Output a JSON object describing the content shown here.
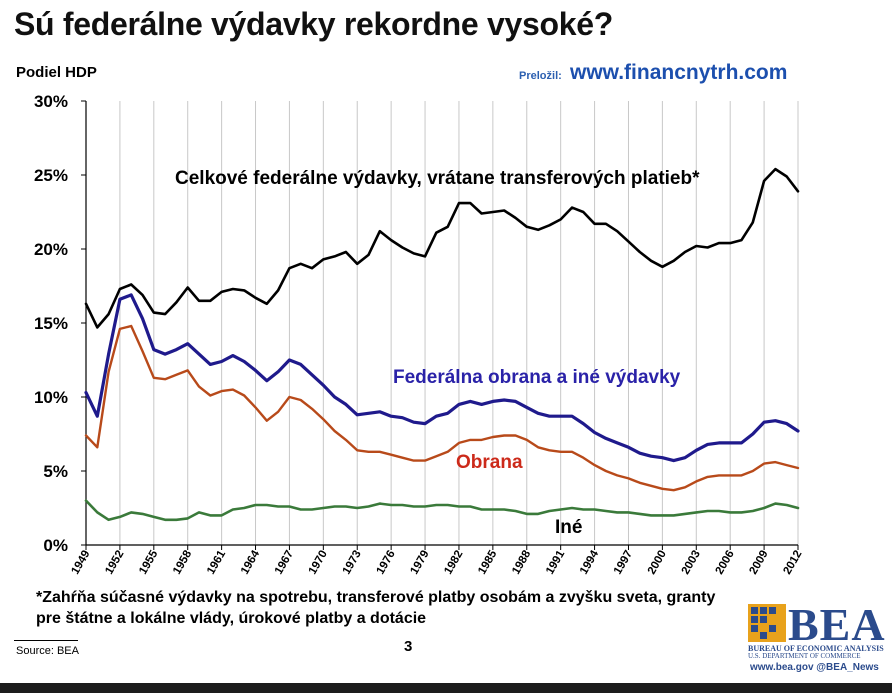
{
  "title": "Sú federálne výdavky rekordne vysoké?",
  "y_axis_unit": "Podiel HDP",
  "translated_label": "Preložil:",
  "translated_site": "www.financnytrh.com",
  "footnote": "*Zahŕňa súčasné výdavky na spotrebu, transferové platby osobám a zvyšku sveta, granty pre štátne a lokálne vlády, úrokové platby a dotácie",
  "source": "Source: BEA",
  "page_number": "3",
  "logo": {
    "name": "BEA",
    "line1": "BUREAU OF ECONOMIC ANALYSIS",
    "line2": "U.S. DEPARTMENT OF COMMERCE",
    "links": "www.bea.gov   @BEA_News"
  },
  "colors": {
    "total": "#000000",
    "defense_other": "#1f1a8c",
    "defense": "#b84a1a",
    "other": "#3a7a3a",
    "grid": "#c8c8c8",
    "annot_total": "#000000",
    "annot_defense_other": "#2a22a8",
    "annot_defense": "#cc2a1a",
    "annot_other": "#000000"
  },
  "chart_data": {
    "type": "line",
    "y_axis_unit": "Podiel HDP",
    "ylim": [
      0,
      30
    ],
    "y_ticks": [
      "0%",
      "5%",
      "10%",
      "15%",
      "20%",
      "25%",
      "30%"
    ],
    "y_tick_values": [
      0,
      5,
      10,
      15,
      20,
      25,
      30
    ],
    "x_tick_labels": [
      "1949",
      "1952",
      "1955",
      "1958",
      "1961",
      "1964",
      "1967",
      "1970",
      "1973",
      "1976",
      "1979",
      "1982",
      "1985",
      "1988",
      "1991",
      "1994",
      "1997",
      "2000",
      "2003",
      "2006",
      "2009",
      "2012"
    ],
    "grid": "vertical lines every 3 years",
    "x": [
      1949,
      1950,
      1951,
      1952,
      1953,
      1954,
      1955,
      1956,
      1957,
      1958,
      1959,
      1960,
      1961,
      1962,
      1963,
      1964,
      1965,
      1966,
      1967,
      1968,
      1969,
      1970,
      1971,
      1972,
      1973,
      1974,
      1975,
      1976,
      1977,
      1978,
      1979,
      1980,
      1981,
      1982,
      1983,
      1984,
      1985,
      1986,
      1987,
      1988,
      1989,
      1990,
      1991,
      1992,
      1993,
      1994,
      1995,
      1996,
      1997,
      1998,
      1999,
      2000,
      2001,
      2002,
      2003,
      2004,
      2005,
      2006,
      2007,
      2008,
      2009,
      2010,
      2011,
      2012
    ],
    "series": [
      {
        "key": "total",
        "annotation": "Celkové federálne výdavky, vrátane transferových platieb*",
        "values": [
          16.3,
          14.7,
          15.6,
          17.3,
          17.6,
          16.9,
          15.7,
          15.6,
          16.4,
          17.4,
          16.5,
          16.5,
          17.1,
          17.3,
          17.2,
          16.7,
          16.3,
          17.2,
          18.7,
          19.0,
          18.7,
          19.3,
          19.5,
          19.8,
          19.0,
          19.6,
          21.2,
          20.6,
          20.1,
          19.7,
          19.5,
          21.1,
          21.5,
          23.1,
          23.1,
          22.4,
          22.5,
          22.6,
          22.1,
          21.5,
          21.3,
          21.6,
          22.0,
          22.8,
          22.5,
          21.7,
          21.7,
          21.2,
          20.5,
          19.8,
          19.2,
          18.8,
          19.2,
          19.8,
          20.2,
          20.1,
          20.4,
          20.4,
          20.6,
          21.8,
          24.6,
          25.4,
          24.9,
          23.9
        ]
      },
      {
        "key": "defense_other",
        "annotation": "Federálna obrana a iné výdavky",
        "values": [
          10.3,
          8.7,
          12.9,
          16.6,
          16.9,
          15.3,
          13.2,
          12.9,
          13.2,
          13.6,
          12.9,
          12.2,
          12.4,
          12.8,
          12.4,
          11.8,
          11.1,
          11.7,
          12.5,
          12.2,
          11.5,
          10.8,
          10.0,
          9.5,
          8.8,
          8.9,
          9.0,
          8.7,
          8.6,
          8.3,
          8.2,
          8.7,
          8.9,
          9.5,
          9.7,
          9.5,
          9.7,
          9.8,
          9.7,
          9.3,
          8.9,
          8.7,
          8.7,
          8.7,
          8.2,
          7.6,
          7.2,
          6.9,
          6.6,
          6.2,
          6.0,
          5.9,
          5.7,
          5.9,
          6.4,
          6.8,
          6.9,
          6.9,
          6.9,
          7.5,
          8.3,
          8.4,
          8.2,
          7.7
        ]
      },
      {
        "key": "defense",
        "annotation": "Obrana",
        "values": [
          7.4,
          6.6,
          11.7,
          14.6,
          14.8,
          13.1,
          11.3,
          11.2,
          11.5,
          11.8,
          10.7,
          10.1,
          10.4,
          10.5,
          10.1,
          9.3,
          8.4,
          9.0,
          10.0,
          9.8,
          9.2,
          8.5,
          7.7,
          7.1,
          6.4,
          6.3,
          6.3,
          6.1,
          5.9,
          5.7,
          5.7,
          6.0,
          6.3,
          6.9,
          7.1,
          7.1,
          7.3,
          7.4,
          7.4,
          7.1,
          6.6,
          6.4,
          6.3,
          6.3,
          5.9,
          5.4,
          5.0,
          4.7,
          4.5,
          4.2,
          4.0,
          3.8,
          3.7,
          3.9,
          4.3,
          4.6,
          4.7,
          4.7,
          4.7,
          5.0,
          5.5,
          5.6,
          5.4,
          5.2
        ]
      },
      {
        "key": "other",
        "annotation": "Iné",
        "values": [
          3.0,
          2.2,
          1.7,
          1.9,
          2.2,
          2.1,
          1.9,
          1.7,
          1.7,
          1.8,
          2.2,
          2.0,
          2.0,
          2.4,
          2.5,
          2.7,
          2.7,
          2.6,
          2.6,
          2.4,
          2.4,
          2.5,
          2.6,
          2.6,
          2.5,
          2.6,
          2.8,
          2.7,
          2.7,
          2.6,
          2.6,
          2.7,
          2.7,
          2.6,
          2.6,
          2.4,
          2.4,
          2.4,
          2.3,
          2.1,
          2.1,
          2.3,
          2.4,
          2.5,
          2.4,
          2.4,
          2.3,
          2.2,
          2.2,
          2.1,
          2.0,
          2.0,
          2.0,
          2.1,
          2.2,
          2.3,
          2.3,
          2.2,
          2.2,
          2.3,
          2.5,
          2.8,
          2.7,
          2.5
        ]
      }
    ]
  }
}
